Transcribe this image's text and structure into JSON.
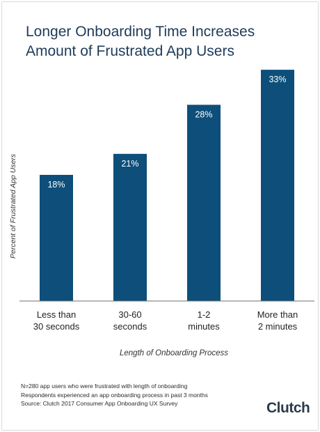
{
  "chart_data": {
    "type": "bar",
    "title": [
      "Longer Onboarding Time Increases",
      "Amount of Frustrated App Users"
    ],
    "ylabel": "Percent of Frustrated App Users",
    "xlabel": "Length of Onboarding Process",
    "categories": [
      [
        "Less than",
        "30 seconds"
      ],
      [
        "30-60",
        "seconds"
      ],
      [
        "1-2",
        "minutes"
      ],
      [
        "More than",
        "2 minutes"
      ]
    ],
    "values": [
      18,
      21,
      28,
      33
    ],
    "value_labels": [
      "18%",
      "21%",
      "28%",
      "33%"
    ],
    "ylim": [
      0,
      35
    ],
    "grid": false,
    "bar_color": "#0d4f7a"
  },
  "footnotes": [
    "N=280 app users who were frustrated with length of onboarding",
    "Respondents experienced an app onboarding process in past 3 months",
    "Source: Clutch 2017 Consumer App Onboarding UX Survey"
  ],
  "logo": "Clutch"
}
